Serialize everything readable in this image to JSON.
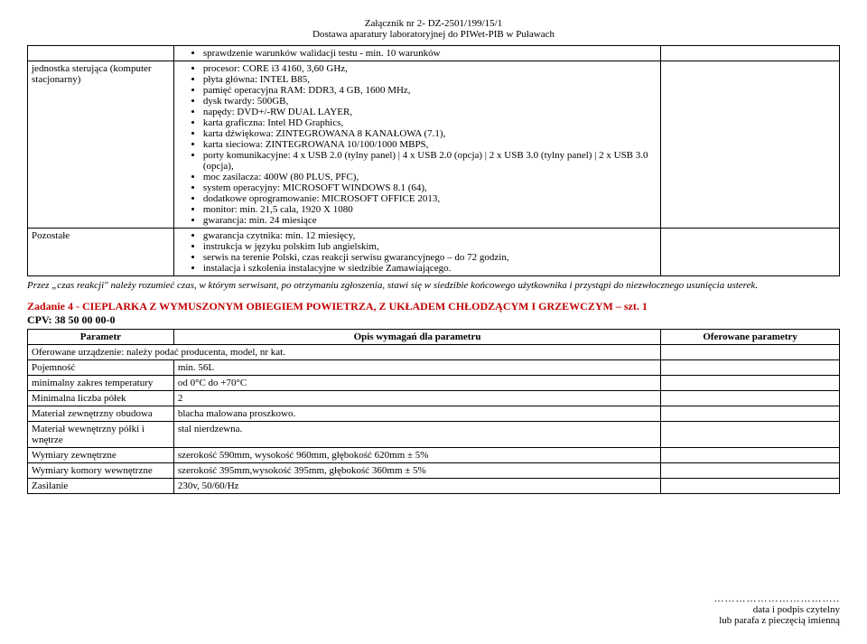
{
  "header": {
    "line1": "Załącznik nr 2- DZ-2501/199/15/1",
    "line2": "Dostawa aparatury laboratoryjnej do PIWet-PIB w Puławach"
  },
  "topTable": {
    "row1": {
      "param": "",
      "bullets": [
        "sprawdzenie warunków walidacji testu - min. 10 warunków"
      ]
    },
    "row2": {
      "param": "jednostka sterująca (komputer stacjonarny)",
      "bullets": [
        "procesor: CORE i3 4160, 3,60 GHz,",
        "płyta główna: INTEL B85,",
        "pamięć operacyjna RAM: DDR3, 4 GB, 1600 MHz,",
        "dysk twardy: 500GB,",
        "napędy: DVD+/-RW DUAL LAYER,",
        "karta graficzna: Intel HD Graphics,",
        "karta dźwiękowa: ZINTEGROWANA 8 KANAŁOWA (7.1),",
        "karta sieciowa: ZINTEGROWANA 10/100/1000 MBPS,",
        "porty komunikacyjne: 4 x USB 2.0 (tylny panel) | 4 x USB 2.0 (opcja) | 2 x USB 3.0 (tylny panel) | 2 x USB 3.0 (opcja),",
        "moc zasilacza: 400W (80 PLUS, PFC),",
        "system operacyjny: MICROSOFT WINDOWS 8.1 (64),",
        "dodatkowe oprogramowanie: MICROSOFT OFFICE 2013,",
        "monitor: min. 21,5 cala, 1920 X 1080",
        "gwarancja: min. 24 miesiące"
      ]
    },
    "row3": {
      "param": "Pozostałe",
      "bullets": [
        "gwarancja czytnika: min. 12 miesięcy,",
        "instrukcja w języku polskim lub angielskim,",
        "serwis na terenie Polski, czas reakcji serwisu gwarancyjnego – do 72 godzin,",
        "instalacja i szkolenia instalacyjne w siedzibie Zamawiającego."
      ]
    }
  },
  "note": "Przez „czas reakcji\" należy rozumieć czas, w którym serwisant, po otrzymaniu zgłoszenia, stawi się w siedzibie końcowego użytkownika i przystąpi do niezwłocznego usunięcia usterek.",
  "task": {
    "heading": "Zadanie 4  - CIEPLARKA Z WYMUSZONYM OBIEGIEM POWIETRZA, Z UKŁADEM CHŁODZĄCYM I GRZEWCZYM – szt. 1",
    "cpv": "CPV: 38 50 00 00-0"
  },
  "table2": {
    "headers": {
      "c1": "Parametr",
      "c2": "Opis wymagań dla parametru",
      "c3": "Oferowane parametry"
    },
    "noteRow": "Oferowane urządzenie: należy podać producenta, model, nr kat.",
    "rows": [
      {
        "p": "Pojemność",
        "d": "min. 56L"
      },
      {
        "p": "minimalny zakres temperatury",
        "d": "od 0°C do +70°C"
      },
      {
        "p": "Minimalna liczba półek",
        "d": "2"
      },
      {
        "p": "Materiał zewnętrzny obudowa",
        "d": "blacha malowana proszkowo."
      },
      {
        "p": "Materiał wewnętrzny półki i wnętrze",
        "d": "stal nierdzewna."
      },
      {
        "p": "Wymiary zewnętrzne",
        "d": "szerokość 590mm, wysokość 960mm, głębokość 620mm ± 5%"
      },
      {
        "p": "Wymiary komory wewnętrzne",
        "d": "szerokość 395mm,wysokość 395mm, głębokość 360mm ± 5%"
      },
      {
        "p": "Zasilanie",
        "d": "230v, 50/60/Hz"
      }
    ]
  },
  "footer": {
    "dots": "……………………………..",
    "line1": "data i podpis czytelny",
    "line2": "lub parafa z pieczęcią imienną"
  }
}
